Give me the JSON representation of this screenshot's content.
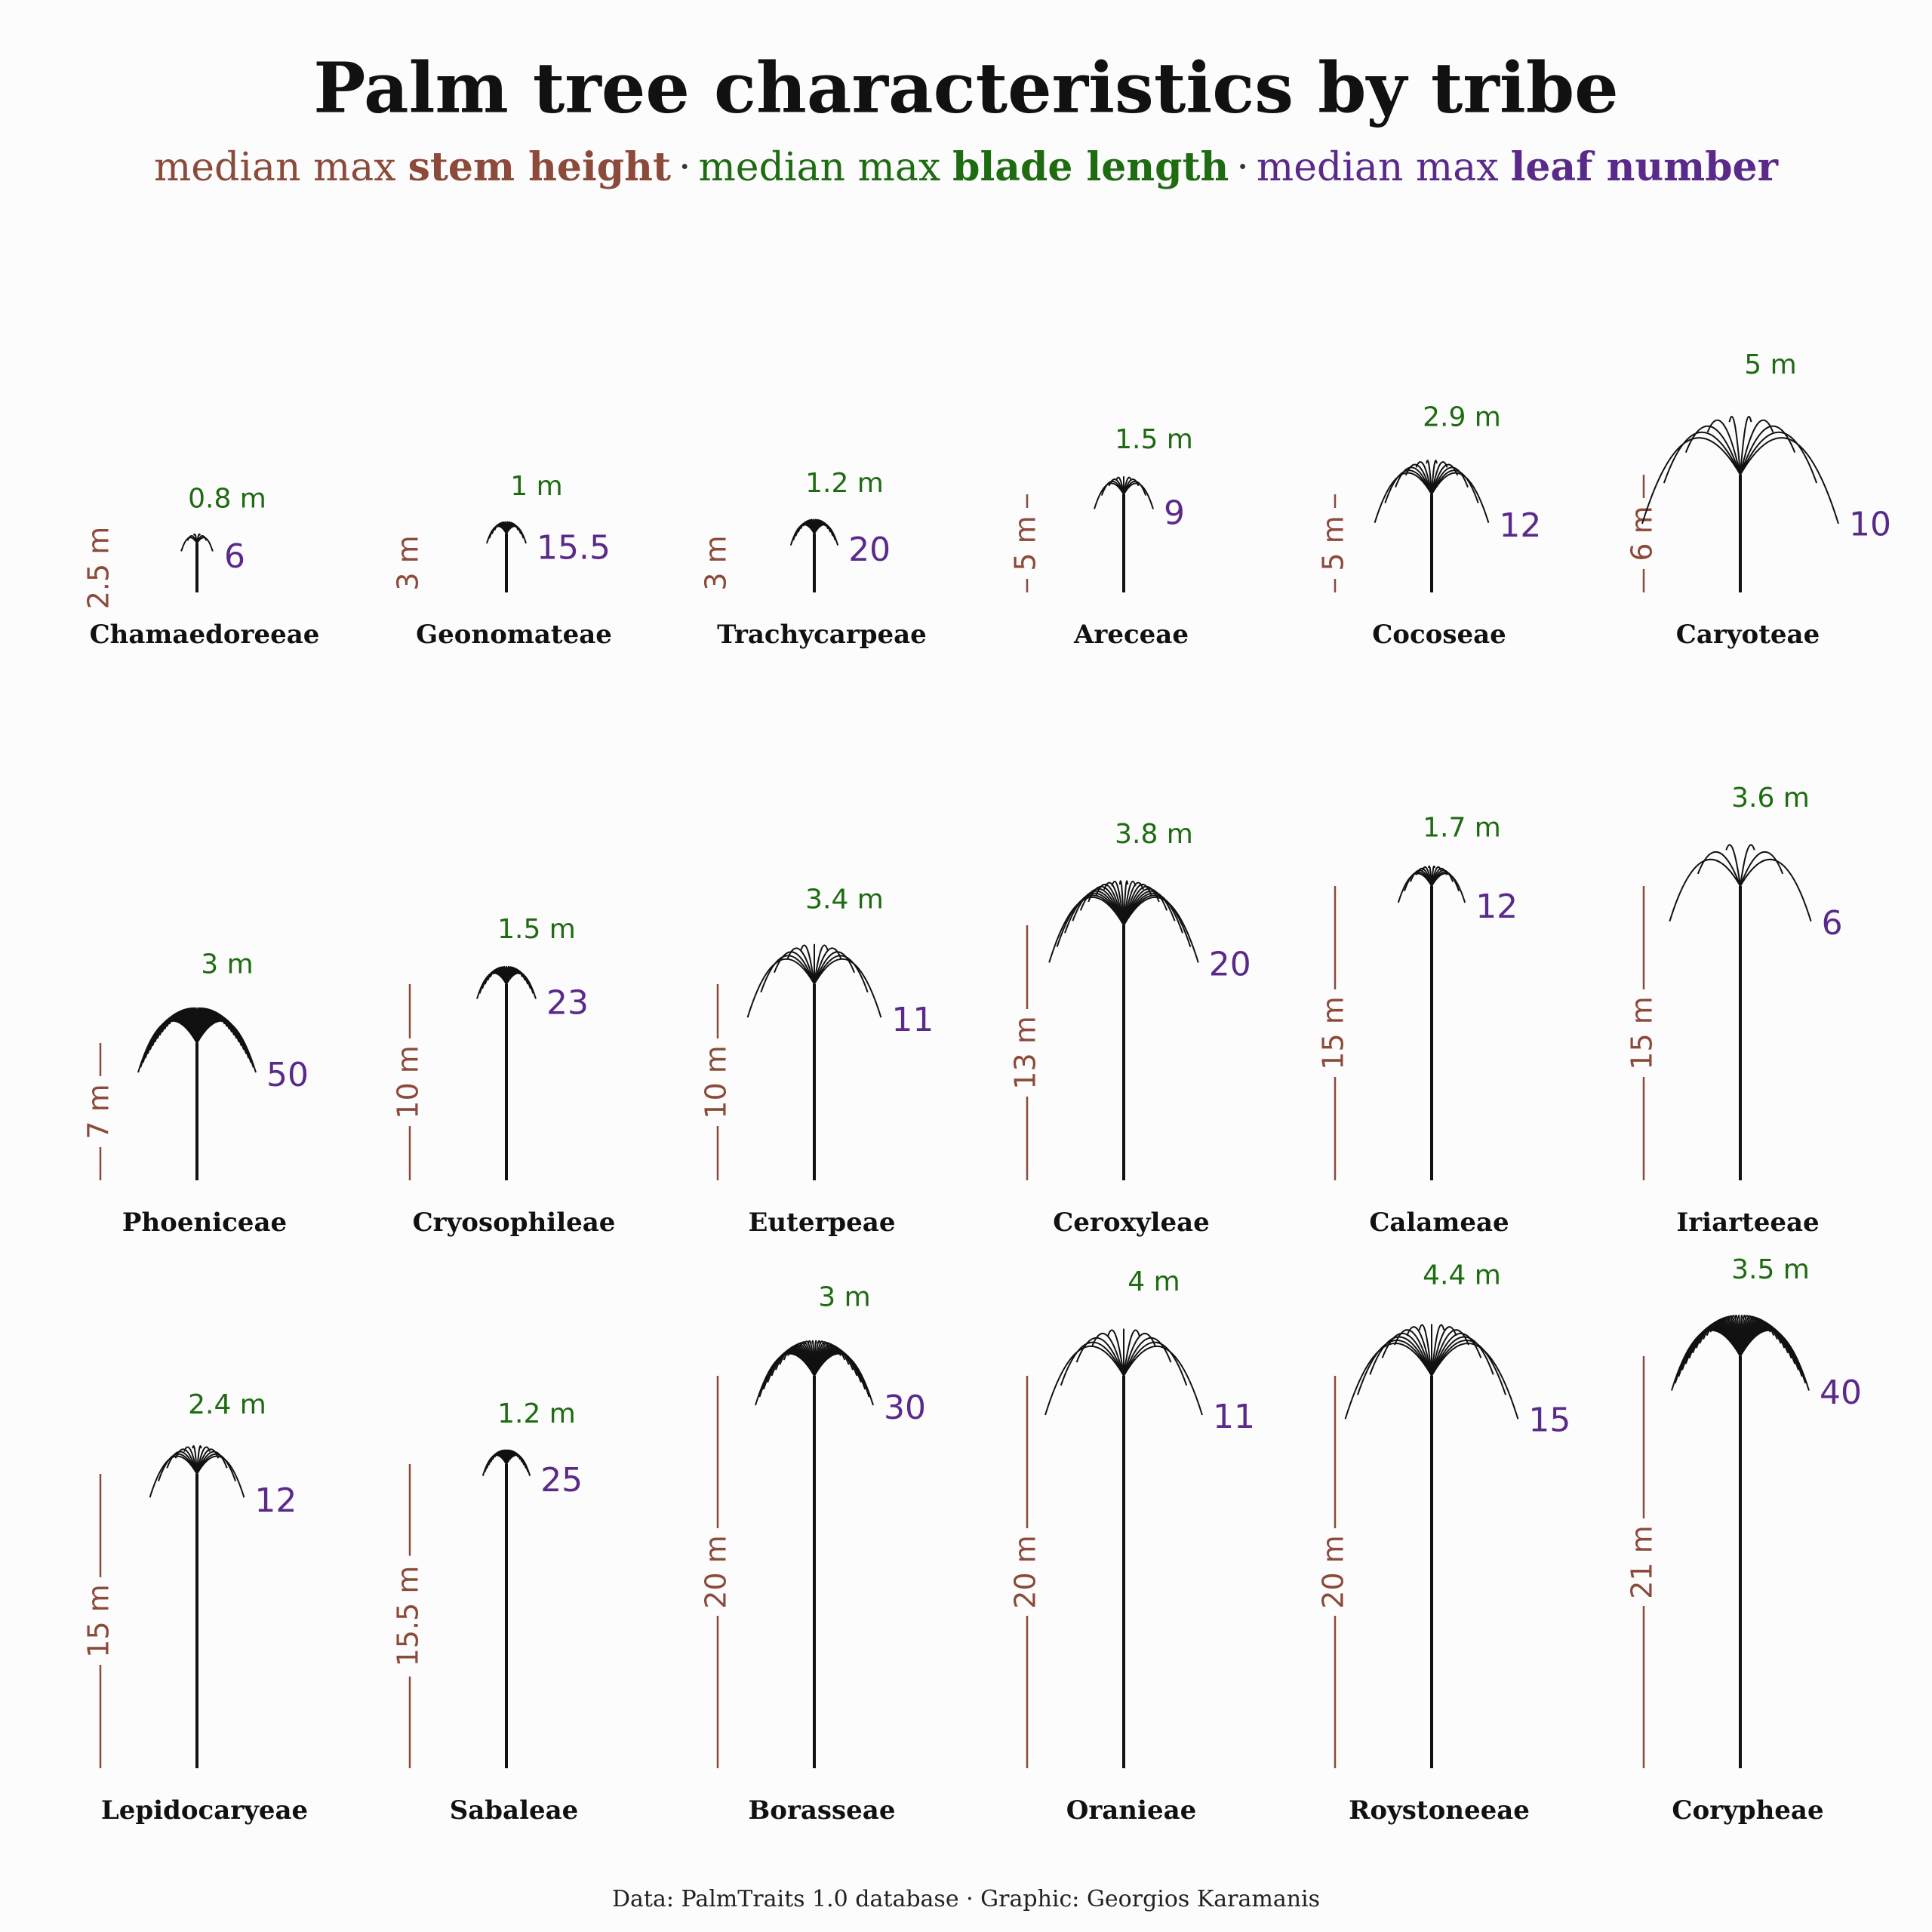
{
  "chart_data": {
    "type": "palm",
    "title": "Palm tree characteristics by tribe",
    "subtitle_prefix": "median max",
    "separator": "·",
    "caption": "Data: PalmTraits 1.0 database · Graphic: Georgios Karamanis",
    "categories": [
      "Chamaedoreeae",
      "Geonomateae",
      "Trachycarpeae",
      "Areceae",
      "Cocoseae",
      "Caryoteae",
      "Phoeniceae",
      "Cryosophileae",
      "Euterpeae",
      "Ceroxyleae",
      "Calameae",
      "Iriarteeae",
      "Lepidocaryeae",
      "Sabaleae",
      "Borasseae",
      "Oranieae",
      "Roystoneeae",
      "Corypheae"
    ],
    "series": [
      {
        "name": "stem height",
        "color": "#8b4a3a",
        "values": [
          2.5,
          3,
          3,
          5,
          5,
          6,
          7,
          10,
          10,
          13,
          15,
          15,
          15,
          15.5,
          20,
          20,
          20,
          21
        ],
        "value_labels": [
          "2.5 m",
          "3 m",
          "3 m",
          "5 m",
          "5 m",
          "6 m",
          "7 m",
          "10 m",
          "10 m",
          "13 m",
          "15 m",
          "15 m",
          "15 m",
          "15.5 m",
          "20 m",
          "20 m",
          "20 m",
          "21 m"
        ]
      },
      {
        "name": "blade length",
        "color": "#1e6b12",
        "values": [
          0.8,
          1,
          1.2,
          1.5,
          2.9,
          5,
          3,
          1.5,
          3.4,
          3.8,
          1.7,
          3.6,
          2.4,
          1.2,
          3,
          4,
          4.4,
          3.5
        ],
        "value_labels": [
          "0.8 m",
          "1 m",
          "1.2 m",
          "1.5 m",
          "2.9 m",
          "5 m",
          "3 m",
          "1.5 m",
          "3.4 m",
          "3.8 m",
          "1.7 m",
          "3.6 m",
          "2.4 m",
          "1.2 m",
          "3 m",
          "4 m",
          "4.4 m",
          "3.5 m"
        ]
      },
      {
        "name": "leaf number",
        "color": "#5a2a8a",
        "values": [
          6,
          15.5,
          20,
          9,
          12,
          10,
          50,
          23,
          11,
          20,
          12,
          6,
          12,
          25,
          30,
          11,
          15,
          40
        ]
      }
    ]
  }
}
